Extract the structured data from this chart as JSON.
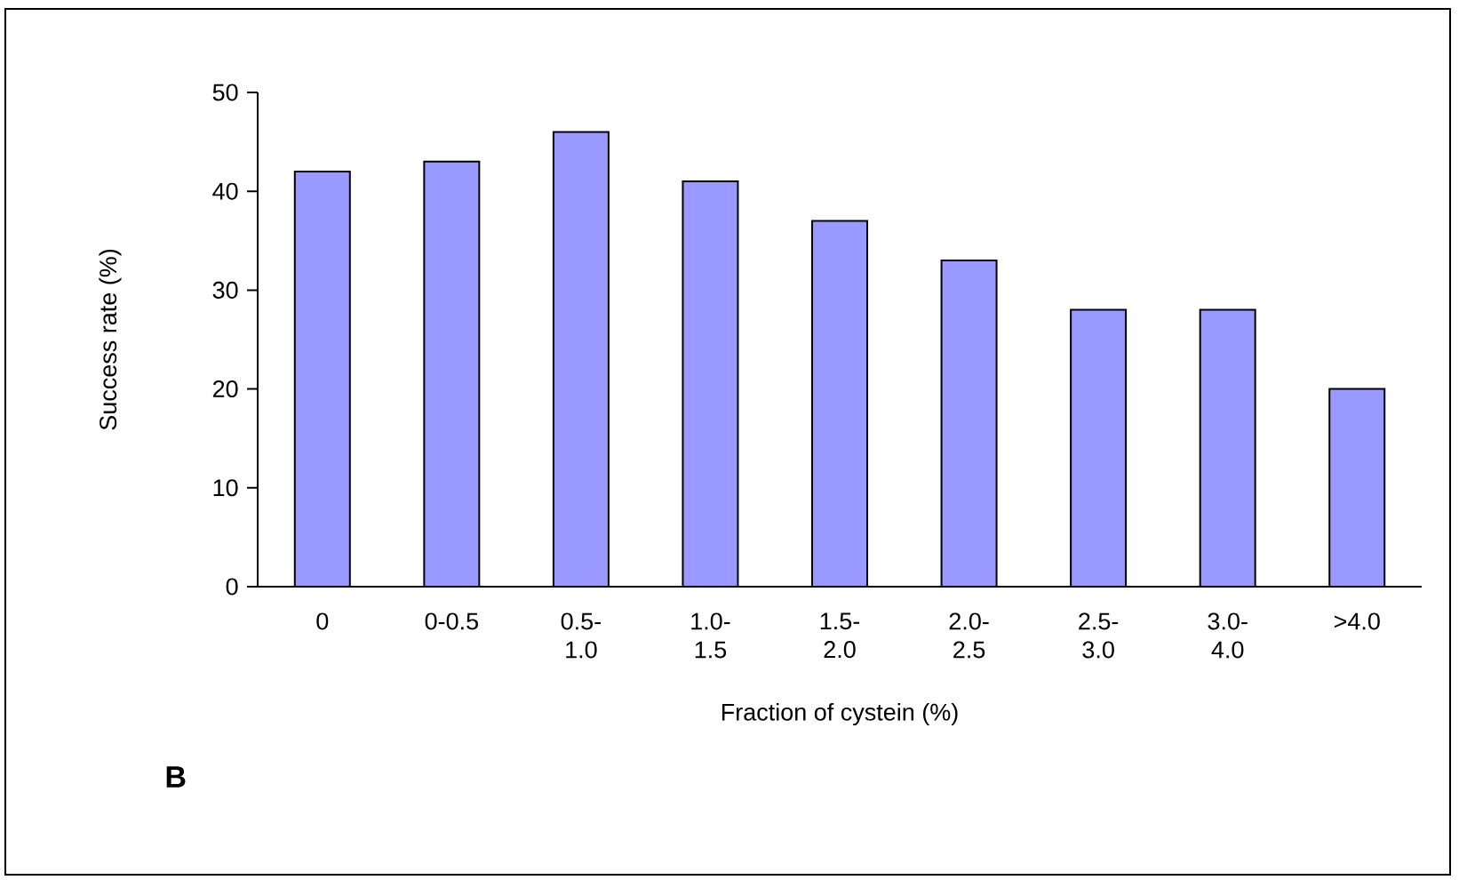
{
  "chart_data": {
    "type": "bar",
    "xlabel": "Fraction of cystein (%)",
    "ylabel": "Success rate (%)",
    "categories": [
      "0",
      "0-0.5",
      "0.5-1.0",
      "1.0-1.5",
      "1.5-2.0",
      "2.0-2.5",
      "2.5-3.0",
      "3.0-4.0",
      ">4.0"
    ],
    "values": [
      42,
      43,
      46,
      41,
      37,
      33,
      28,
      28,
      20
    ],
    "color": "#9999ff",
    "ylim": [
      0,
      50
    ],
    "yticks": [
      0,
      10,
      20,
      30,
      40,
      50
    ],
    "grid": false,
    "annotations": [
      "B"
    ]
  }
}
